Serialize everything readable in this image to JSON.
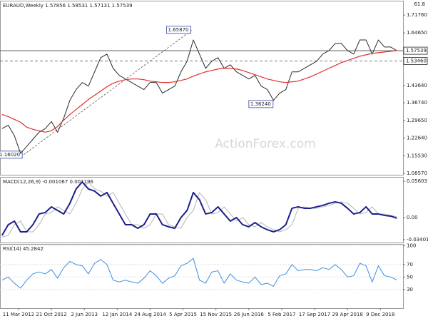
{
  "chart_data": [
    {
      "type": "line",
      "title": "EURAUD,Weekly  1.57856 1.58531 1.57131 1.57539",
      "watermark": "ActionForex.com",
      "fib_label": "61.8",
      "x": [
        -16,
        -10,
        -4,
        2,
        8,
        14,
        20,
        26,
        32,
        38,
        44,
        50,
        56,
        62,
        68,
        74,
        80,
        86,
        92,
        98,
        104,
        110,
        116,
        122,
        128,
        134,
        140,
        146,
        152,
        158,
        164,
        170,
        176,
        182,
        188,
        194,
        200,
        206,
        212,
        218,
        224,
        230,
        236,
        242,
        248,
        254,
        260,
        266,
        272,
        278,
        284,
        290,
        296,
        302,
        308,
        314,
        320,
        326,
        332,
        338,
        344,
        350,
        356,
        362,
        368
      ],
      "xlim": [
        -18,
        374
      ],
      "xticks": [
        {
          "value": 0,
          "label": "11 Mar 2012"
        },
        {
          "value": 32,
          "label": "21 Oct 2012"
        },
        {
          "value": 64,
          "label": "2 Jun 2013"
        },
        {
          "value": 96,
          "label": "12 Jan 2014"
        },
        {
          "value": 128,
          "label": "24 Aug 2014"
        },
        {
          "value": 160,
          "label": "5 Apr 2015"
        },
        {
          "value": 192,
          "label": "15 Nov 2015"
        },
        {
          "value": 224,
          "label": "26 Jun 2016"
        },
        {
          "value": 256,
          "label": "5 Feb 2017"
        },
        {
          "value": 288,
          "label": "17 Sep 2017"
        },
        {
          "value": 320,
          "label": "29 Apr 2018"
        },
        {
          "value": 352,
          "label": "9 Dec 2018"
        }
      ],
      "ylim": [
        1.08,
        1.775
      ],
      "yticks": [
        {
          "value": 1.7176,
          "label": "1.71760"
        },
        {
          "value": 1.6465,
          "label": "1.64650"
        },
        {
          "value": 1.4364,
          "label": "1.43640"
        },
        {
          "value": 1.3674,
          "label": "1.36740"
        },
        {
          "value": 1.2965,
          "label": "1.29650"
        },
        {
          "value": 1.2264,
          "label": "1.22640"
        },
        {
          "value": 1.1553,
          "label": "1.15530"
        },
        {
          "value": 1.0857,
          "label": "1.08570"
        }
      ],
      "levels": [
        {
          "value": 1.57539,
          "style": "solid"
        },
        {
          "value": 1.5346,
          "label": "1.53460",
          "style": "dashed"
        }
      ],
      "annotations": [
        {
          "value": 1.6587,
          "label": "1.65870",
          "x": 169
        },
        {
          "value": 1.3624,
          "label": "1.36240",
          "x": 249
        },
        {
          "value": 1.1602,
          "label": "1.16020",
          "x": 5
        }
      ],
      "series": [
        {
          "name": "EURAUD",
          "color": "#2b2b2b",
          "width": 1,
          "values": [
            1.2642,
            1.2783,
            1.2358,
            1.165,
            1.1933,
            1.2217,
            1.25,
            1.2642,
            1.2925,
            1.25,
            1.3067,
            1.3775,
            1.4201,
            1.4484,
            1.4342,
            1.4909,
            1.5476,
            1.5618,
            1.5051,
            1.4767,
            1.4625,
            1.4484,
            1.4342,
            1.4201,
            1.4484,
            1.4484,
            1.4059,
            1.4201,
            1.4342,
            1.4909,
            1.5334,
            1.6184,
            1.5618,
            1.5051,
            1.5334,
            1.5476,
            1.5051,
            1.5192,
            1.4909,
            1.4767,
            1.4625,
            1.4767,
            1.4342,
            1.4201,
            1.3775,
            1.4059,
            1.4201,
            1.4909,
            1.4909,
            1.5051,
            1.5192,
            1.5334,
            1.5618,
            1.576,
            1.6043,
            1.6043,
            1.576,
            1.5618,
            1.6184,
            1.6184,
            1.5618,
            1.6184,
            1.5901,
            1.5901,
            1.57539
          ]
        },
        {
          "name": "MA",
          "color": "#e0302f",
          "width": 1.2,
          "values": [
            1.3208,
            1.3123,
            1.301,
            1.2897,
            1.2698,
            1.2613,
            1.2557,
            1.25,
            1.2557,
            1.2727,
            1.2982,
            1.3208,
            1.3407,
            1.3605,
            1.3804,
            1.3974,
            1.4144,
            1.4314,
            1.4455,
            1.454,
            1.4597,
            1.4625,
            1.4625,
            1.4597,
            1.454,
            1.4512,
            1.4484,
            1.4484,
            1.4512,
            1.4569,
            1.4625,
            1.4739,
            1.4824,
            1.4909,
            1.4965,
            1.5022,
            1.5051,
            1.5051,
            1.5022,
            1.4965,
            1.488,
            1.4795,
            1.471,
            1.4625,
            1.4569,
            1.4512,
            1.4484,
            1.4512,
            1.454,
            1.4625,
            1.471,
            1.4824,
            1.4937,
            1.5051,
            1.5164,
            1.5277,
            1.5363,
            1.5448,
            1.5533,
            1.5589,
            1.5646,
            1.5674,
            1.5703,
            1.5731,
            1.576
          ]
        }
      ]
    },
    {
      "type": "line",
      "title": "MACD(12,26,9) -0.001067 0.001196",
      "ylim": [
        -0.0385,
        0.0626
      ],
      "yticks": [
        0.05603,
        {
          "value": 0,
          "label": "0.00"
        },
        -0.034017
      ],
      "series": [
        {
          "name": "Signal",
          "color": "#b5b5b5",
          "width": 1,
          "values": [
            -0.03,
            -0.0275,
            -0.011,
            -0.0055,
            -0.022,
            -0.022,
            -0.011,
            0.0055,
            0.0077,
            0.0165,
            0.011,
            0.0055,
            0.022,
            0.044,
            0.0549,
            0.044,
            0.0407,
            0.033,
            0.0385,
            0.022,
            0.0055,
            -0.011,
            -0.011,
            -0.0165,
            -0.011,
            0.0055,
            0.0055,
            -0.011,
            -0.0143,
            -0.0165,
            0,
            0.011,
            0.0385,
            0.0275,
            0.0055,
            0.0077,
            0.0165,
            0.0055,
            -0.0055,
            0,
            -0.011,
            -0.0143,
            -0.0077,
            -0.0143,
            -0.0187,
            -0.022,
            -0.0187,
            -0.011,
            0.0143,
            0.0165,
            0.0143,
            0.0143,
            0.0165,
            0.0187,
            0.022,
            0.0242,
            0.022,
            0.0143,
            0.0055,
            0.0077,
            0.0165,
            0.0055,
            0.0055,
            0.0033,
            0.001196
          ]
        },
        {
          "name": "MACD",
          "color": "#1c1f8a",
          "width": 2,
          "values": [
            -0.0275,
            -0.011,
            -0.0055,
            -0.022,
            -0.022,
            -0.011,
            0.0055,
            0.0077,
            0.0165,
            0.011,
            0.0055,
            0.022,
            0.044,
            0.0549,
            0.044,
            0.0407,
            0.033,
            0.0385,
            0.022,
            0.0055,
            -0.011,
            -0.011,
            -0.0165,
            -0.011,
            0.0055,
            0.0055,
            -0.011,
            -0.0143,
            -0.0165,
            0,
            0.011,
            0.0385,
            0.0275,
            0.0055,
            0.0077,
            0.0165,
            0.0055,
            -0.0055,
            0,
            -0.011,
            -0.0143,
            -0.0077,
            -0.0143,
            -0.0187,
            -0.022,
            -0.0187,
            -0.011,
            0.0143,
            0.0165,
            0.0143,
            0.0143,
            0.0165,
            0.0187,
            0.022,
            0.0242,
            0.022,
            0.0143,
            0.0055,
            0.0077,
            0.0165,
            0.0055,
            0.0055,
            0.0033,
            0.0022,
            -0.001067
          ]
        }
      ]
    },
    {
      "type": "line",
      "title": "RSI(14) 45.2842",
      "ylim": [
        0,
        103
      ],
      "yticks": [
        100,
        70,
        50,
        30
      ],
      "series": [
        {
          "name": "RSI",
          "color": "#3a8de0",
          "width": 1,
          "values": [
            45,
            50,
            40,
            32,
            45,
            55,
            58,
            55,
            62,
            48,
            65,
            75,
            70,
            68,
            55,
            72,
            78,
            70,
            45,
            42,
            45,
            42,
            40,
            48,
            60,
            52,
            40,
            48,
            52,
            68,
            72,
            80,
            45,
            40,
            58,
            60,
            40,
            55,
            45,
            42,
            40,
            50,
            38,
            40,
            35,
            52,
            55,
            70,
            60,
            62,
            62,
            60,
            65,
            62,
            70,
            62,
            50,
            52,
            72,
            68,
            42,
            68,
            52,
            50,
            45.2842
          ]
        }
      ]
    }
  ]
}
